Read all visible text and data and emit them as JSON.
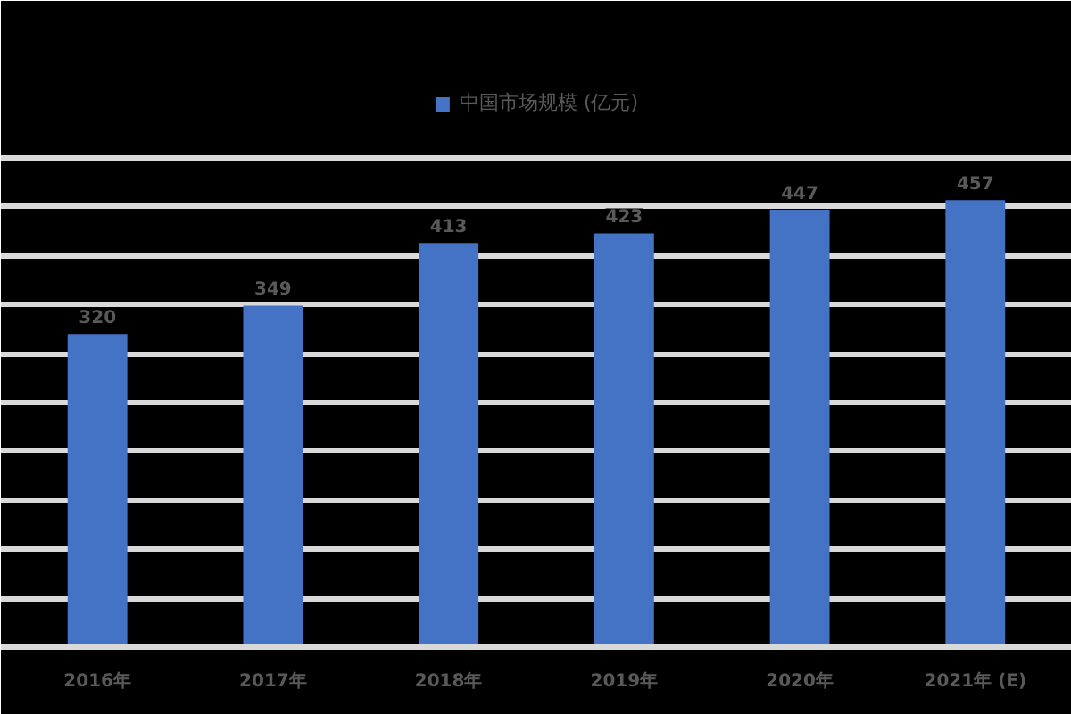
{
  "chart_data": {
    "type": "bar",
    "categories": [
      "2016年",
      "2017年",
      "2018年",
      "2019年",
      "2020年",
      "2021年 (E)"
    ],
    "series": [
      {
        "name": "中国市场规模 (亿元)",
        "color": "#4472c4",
        "values": [
          320,
          349,
          413,
          423,
          447,
          457
        ]
      }
    ],
    "ylim": [
      0,
      500
    ],
    "yticks": [
      {
        "value": 0,
        "label": null
      },
      {
        "value": 50,
        "label": null
      },
      {
        "value": 100,
        "label": null
      },
      {
        "value": 150,
        "label": null
      },
      {
        "value": 200,
        "label": null
      },
      {
        "value": 250,
        "label": null
      },
      {
        "value": 300,
        "label": null
      },
      {
        "value": 350,
        "label": null
      },
      {
        "value": 400,
        "label": null
      },
      {
        "value": 450,
        "label": null
      },
      {
        "value": 500,
        "label": null
      }
    ],
    "grid": "y",
    "legend": "top",
    "tick_labels": "x",
    "data_labels": true
  }
}
